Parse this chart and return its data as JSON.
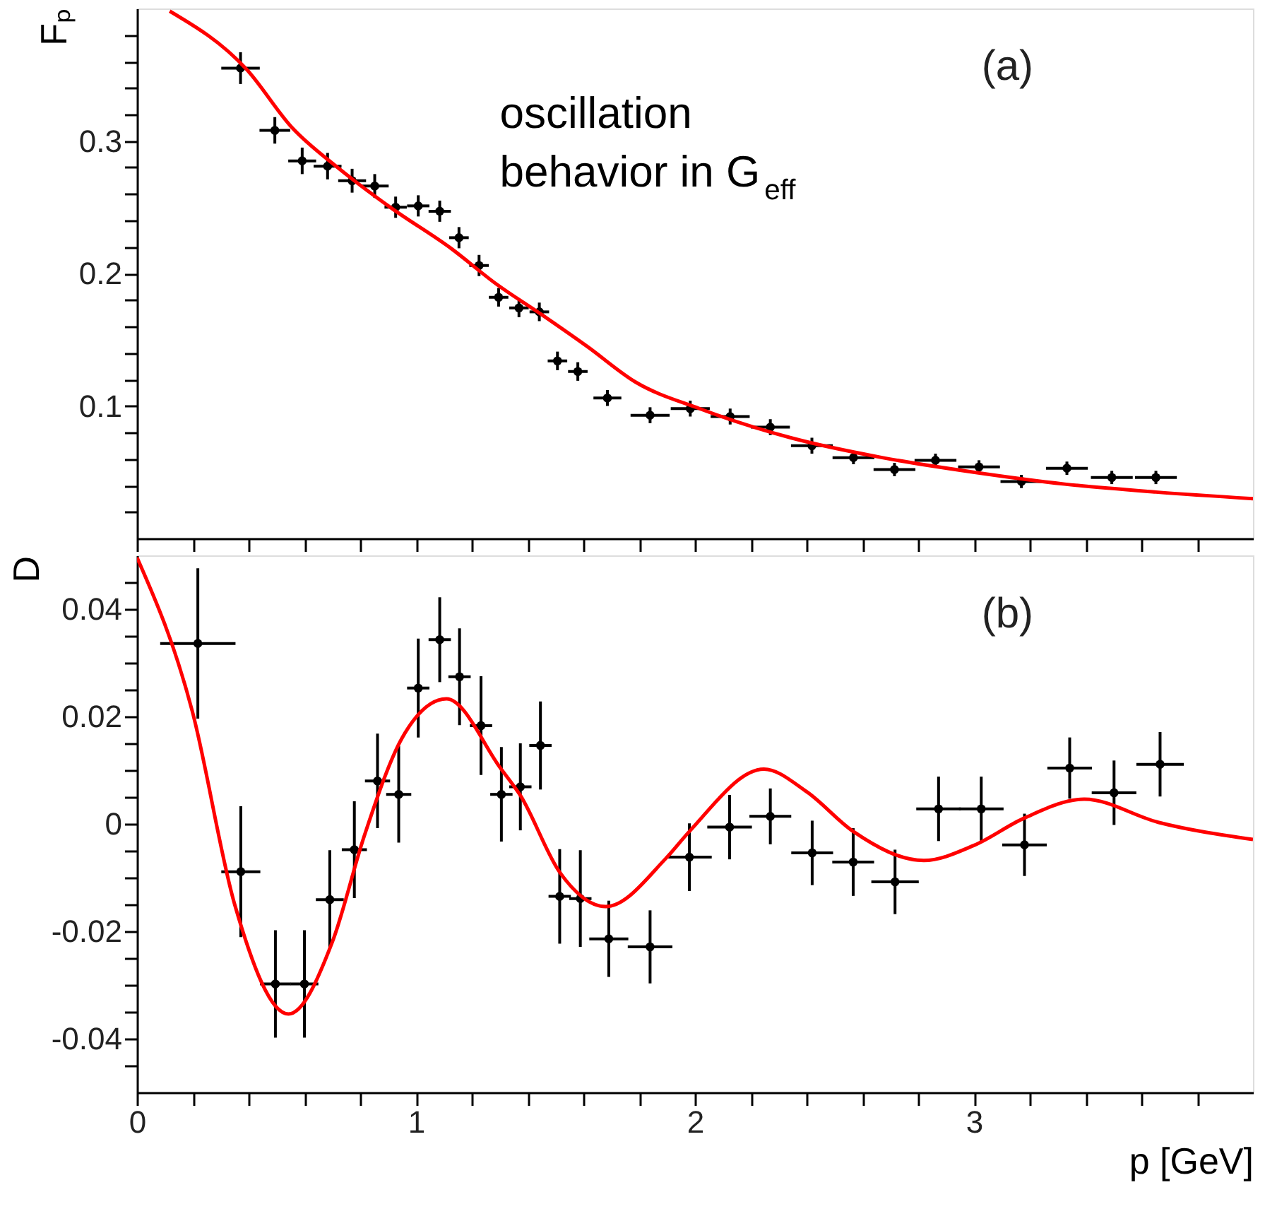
{
  "chart_data": [
    {
      "type": "scatter",
      "ylabel": "Fₚ",
      "xlim": [
        0,
        4
      ],
      "ylim": [
        0,
        0.4
      ],
      "xticks": [
        0,
        {
          "value": 0.2,
          "label": null
        },
        {
          "value": 0.4,
          "label": null
        },
        {
          "value": 0.6,
          "label": null
        },
        {
          "value": 0.8,
          "label": null
        },
        1,
        {
          "value": 1.2,
          "label": null
        },
        {
          "value": 1.4,
          "label": null
        },
        {
          "value": 1.6,
          "label": null
        },
        {
          "value": 1.8,
          "label": null
        },
        2,
        {
          "value": 2.2,
          "label": null
        },
        {
          "value": 2.4,
          "label": null
        },
        {
          "value": 2.6,
          "label": null
        },
        {
          "value": 2.8,
          "label": null
        },
        3,
        {
          "value": 3.2,
          "label": null
        },
        {
          "value": 3.4,
          "label": null
        },
        {
          "value": 3.6,
          "label": null
        },
        {
          "value": 3.8,
          "label": null
        }
      ],
      "yticks": [
        {
          "value": 0.02,
          "label": null
        },
        {
          "value": 0.04,
          "label": null
        },
        {
          "value": 0.06,
          "label": null
        },
        {
          "value": 0.08,
          "label": null
        },
        0.1,
        {
          "value": 0.12,
          "label": null
        },
        {
          "value": 0.14,
          "label": null
        },
        {
          "value": 0.16,
          "label": null
        },
        {
          "value": 0.18,
          "label": null
        },
        0.2,
        {
          "value": 0.22,
          "label": null
        },
        {
          "value": 0.24,
          "label": null
        },
        {
          "value": 0.26,
          "label": null
        },
        {
          "value": 0.28,
          "label": null
        },
        0.3,
        {
          "value": 0.32,
          "label": null
        },
        {
          "value": 0.34,
          "label": null
        },
        {
          "value": 0.36,
          "label": null
        },
        {
          "value": 0.38,
          "label": null
        }
      ],
      "tick_labels": "y",
      "grid": false,
      "annotations": [
        "(a)",
        "oscillation behavior in G$_{eff}$"
      ],
      "series": [
        {
          "color": "#000000",
          "marker": "circle",
          "x": [
            0.371,
            0.494,
            0.592,
            0.683,
            0.771,
            0.852,
            0.927,
            1.008,
            1.085,
            1.154,
            1.226,
            1.296,
            1.369,
            1.442,
            1.507,
            1.58,
            1.686,
            1.839,
            1.983,
            2.126,
            2.27,
            2.419,
            2.568,
            2.715,
            2.862,
            3.018,
            3.17,
            3.333,
            3.494,
            3.652
          ],
          "values": [
            0.355,
            0.308,
            0.285,
            0.281,
            0.27,
            0.266,
            0.25,
            0.251,
            0.247,
            0.227,
            0.206,
            0.182,
            0.174,
            0.171,
            0.134,
            0.126,
            0.106,
            0.093,
            0.098,
            0.092,
            0.084,
            0.07,
            0.061,
            0.052,
            0.059,
            0.054,
            0.043,
            0.053,
            0.046,
            0.046
          ],
          "errors": [
            0.012,
            0.01,
            0.01,
            0.01,
            0.009,
            0.009,
            0.008,
            0.008,
            0.008,
            0.008,
            0.008,
            0.007,
            0.007,
            0.007,
            0.007,
            0.007,
            0.006,
            0.006,
            0.006,
            0.006,
            0.006,
            0.006,
            0.005,
            0.005,
            0.005,
            0.005,
            0.005,
            0.005,
            0.005,
            0.005
          ],
          "xerrors": [
            0.069,
            0.055,
            0.05,
            0.05,
            0.05,
            0.05,
            0.04,
            0.04,
            0.04,
            0.035,
            0.035,
            0.035,
            0.035,
            0.035,
            0.035,
            0.035,
            0.05,
            0.07,
            0.07,
            0.07,
            0.07,
            0.075,
            0.075,
            0.075,
            0.075,
            0.075,
            0.075,
            0.075,
            0.075,
            0.075
          ]
        },
        {
          "type": "line",
          "color": "#ff0000",
          "marker": "none",
          "line_style": "solid",
          "x": [
            0.117,
            0.393,
            0.556,
            0.719,
            0.914,
            1.125,
            1.288,
            1.45,
            1.613,
            1.787,
            2.016,
            2.343,
            2.671,
            2.998,
            3.325,
            3.652,
            4.0
          ],
          "values": [
            0.398,
            0.354,
            0.31,
            0.28,
            0.249,
            0.219,
            0.192,
            0.169,
            0.145,
            0.118,
            0.098,
            0.076,
            0.061,
            0.05,
            0.041,
            0.035,
            0.03
          ]
        }
      ]
    },
    {
      "type": "scatter",
      "xlabel": "p [GeV]",
      "ylabel": "D",
      "xlim": [
        0,
        4
      ],
      "ylim": [
        -0.05,
        0.05
      ],
      "xticks": [
        0,
        {
          "value": 0.2,
          "label": null
        },
        {
          "value": 0.4,
          "label": null
        },
        {
          "value": 0.6,
          "label": null
        },
        {
          "value": 0.8,
          "label": null
        },
        1,
        {
          "value": 1.2,
          "label": null
        },
        {
          "value": 1.4,
          "label": null
        },
        {
          "value": 1.6,
          "label": null
        },
        {
          "value": 1.8,
          "label": null
        },
        2,
        {
          "value": 2.2,
          "label": null
        },
        {
          "value": 2.4,
          "label": null
        },
        {
          "value": 2.6,
          "label": null
        },
        {
          "value": 2.8,
          "label": null
        },
        3,
        {
          "value": 3.2,
          "label": null
        },
        {
          "value": 3.4,
          "label": null
        },
        {
          "value": 3.6,
          "label": null
        },
        {
          "value": 3.8,
          "label": null
        }
      ],
      "yticks": [
        {
          "value": -0.045,
          "label": null
        },
        -0.04,
        {
          "value": -0.035,
          "label": null
        },
        {
          "value": -0.03,
          "label": null
        },
        {
          "value": -0.025,
          "label": null
        },
        -0.02,
        {
          "value": -0.015,
          "label": null
        },
        {
          "value": -0.01,
          "label": null
        },
        {
          "value": -0.005,
          "label": null
        },
        0,
        {
          "value": 0.005,
          "label": null
        },
        {
          "value": 0.01,
          "label": null
        },
        {
          "value": 0.015,
          "label": null
        },
        0.02,
        {
          "value": 0.025,
          "label": null
        },
        {
          "value": 0.03,
          "label": null
        },
        {
          "value": 0.035,
          "label": null
        },
        0.04,
        {
          "value": 0.045,
          "label": null
        }
      ],
      "grid": false,
      "annotations": [
        "(b)"
      ],
      "series": [
        {
          "color": "#000000",
          "marker": "circle",
          "x": [
            0.218,
            0.372,
            0.496,
            0.6,
            0.691,
            0.779,
            0.862,
            0.938,
            1.008,
            1.085,
            1.156,
            1.233,
            1.306,
            1.374,
            1.446,
            1.515,
            1.589,
            1.691,
            1.839,
            1.98,
            2.124,
            2.27,
            2.42,
            2.567,
            2.717,
            2.873,
            3.026,
            3.181,
            3.343,
            3.502,
            3.667
          ],
          "values": [
            0.0336,
            -0.0089,
            -0.0298,
            -0.0298,
            -0.0141,
            -0.0048,
            0.008,
            0.0055,
            0.0253,
            0.0343,
            0.0274,
            0.0183,
            0.0055,
            0.0069,
            0.0146,
            -0.0135,
            -0.0139,
            -0.0214,
            -0.0229,
            -0.0062,
            -0.0006,
            0.0014,
            -0.0054,
            -0.0071,
            -0.0108,
            0.0028,
            0.0028,
            -0.0039,
            0.0104,
            0.0058,
            0.0111
          ],
          "errors": [
            0.014,
            0.0122,
            0.01,
            0.01,
            0.0092,
            0.009,
            0.0088,
            0.009,
            0.0092,
            0.0079,
            0.009,
            0.0092,
            0.0088,
            0.0081,
            0.0082,
            0.0088,
            0.009,
            0.0071,
            0.0068,
            0.0063,
            0.006,
            0.0052,
            0.006,
            0.0063,
            0.006,
            0.006,
            0.006,
            0.0058,
            0.0057,
            0.006,
            0.006
          ],
          "xerrors": [
            0.135,
            0.07,
            0.055,
            0.05,
            0.05,
            0.045,
            0.045,
            0.045,
            0.04,
            0.04,
            0.04,
            0.04,
            0.04,
            0.04,
            0.04,
            0.04,
            0.04,
            0.07,
            0.08,
            0.08,
            0.08,
            0.075,
            0.075,
            0.075,
            0.085,
            0.08,
            0.08,
            0.08,
            0.08,
            0.08,
            0.085
          ]
        },
        {
          "type": "line",
          "color": "#ff0000",
          "marker": "none",
          "line_style": "solid",
          "x": [
            0,
            0.198,
            0.35,
            0.543,
            0.7,
            0.816,
            0.95,
            1.109,
            1.304,
            1.374,
            1.515,
            1.68,
            1.896,
            1.98,
            2.247,
            2.4,
            2.567,
            2.82,
            3.0,
            3.181,
            3.395,
            3.66,
            4.0
          ],
          "values": [
            0.0496,
            0.021,
            -0.015,
            -0.0354,
            -0.022,
            -0.002,
            0.016,
            0.0233,
            0.0103,
            0.0053,
            -0.009,
            -0.0154,
            -0.0064,
            -0.0014,
            0.0102,
            0.006,
            -0.0014,
            -0.0068,
            -0.004,
            0.0011,
            0.0046,
            0.0003,
            -0.0029
          ]
        }
      ]
    }
  ]
}
